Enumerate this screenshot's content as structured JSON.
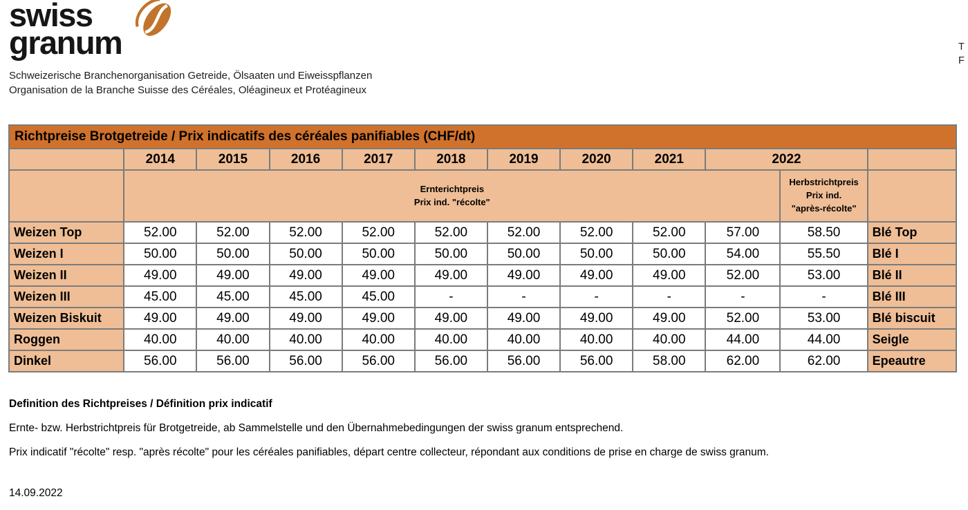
{
  "logo": {
    "word1": "swiss",
    "word2": "granum",
    "icon": "grain-seed-icon",
    "subtitle_de": "Schweizerische Branchenorganisation Getreide, Ölsaaten und Eiweisspflanzen",
    "subtitle_fr": "Organisation de la Branche Suisse des Céréales, Oléagineux et Protéagineux"
  },
  "contact_cut": {
    "line1": "T",
    "line2": "F"
  },
  "table": {
    "title": "Richtpreise Brotgetreide / Prix indicatifs des céréales panifiables (CHF/dt)",
    "years": [
      "2014",
      "2015",
      "2016",
      "2017",
      "2018",
      "2019",
      "2020",
      "2021"
    ],
    "year_2022": "2022",
    "subheader_main_l1": "Ernterichtpreis",
    "subheader_main_l2": "Prix ind. \"récolte\"",
    "subheader_2022b_l1": "Herbstrichtpreis",
    "subheader_2022b_l2": "Prix ind.",
    "subheader_2022b_l3": "\"après-récolte\"",
    "rows": [
      {
        "label_de": "Weizen Top",
        "values": [
          "52.00",
          "52.00",
          "52.00",
          "52.00",
          "52.00",
          "52.00",
          "52.00",
          "52.00",
          "57.00",
          "58.50"
        ],
        "label_fr": "Blé Top"
      },
      {
        "label_de": "Weizen I",
        "values": [
          "50.00",
          "50.00",
          "50.00",
          "50.00",
          "50.00",
          "50.00",
          "50.00",
          "50.00",
          "54.00",
          "55.50"
        ],
        "label_fr": "Blé I"
      },
      {
        "label_de": "Weizen II",
        "values": [
          "49.00",
          "49.00",
          "49.00",
          "49.00",
          "49.00",
          "49.00",
          "49.00",
          "49.00",
          "52.00",
          "53.00"
        ],
        "label_fr": "Blé II"
      },
      {
        "label_de": "Weizen III",
        "values": [
          "45.00",
          "45.00",
          "45.00",
          "45.00",
          "-",
          "-",
          "-",
          "-",
          "-",
          "-"
        ],
        "label_fr": "Blé III"
      },
      {
        "label_de": "Weizen Biskuit",
        "values": [
          "49.00",
          "49.00",
          "49.00",
          "49.00",
          "49.00",
          "49.00",
          "49.00",
          "49.00",
          "52.00",
          "53.00"
        ],
        "label_fr": "Blé biscuit"
      },
      {
        "label_de": "Roggen",
        "values": [
          "40.00",
          "40.00",
          "40.00",
          "40.00",
          "40.00",
          "40.00",
          "40.00",
          "40.00",
          "44.00",
          "44.00"
        ],
        "label_fr": "Seigle"
      },
      {
        "label_de": "Dinkel",
        "values": [
          "56.00",
          "56.00",
          "56.00",
          "56.00",
          "56.00",
          "56.00",
          "56.00",
          "58.00",
          "62.00",
          "62.00"
        ],
        "label_fr": "Epeautre"
      }
    ]
  },
  "definition": {
    "heading": "Definition des Richtpreises / Définition prix indicatif",
    "line_de": "Ernte- bzw. Herbstrichtpreis für Brotgetreide, ab Sammelstelle und den Übernahmebedingungen der swiss granum entsprechend.",
    "line_fr": "Prix indicatif \"récolte\" resp. \"après récolte\" pour les céréales panifiables, départ centre collecteur, répondant aux conditions de prise en charge de swiss granum."
  },
  "date": "14.09.2022",
  "colors": {
    "header_orange": "#D0722C",
    "cell_salmon": "#EFBE96",
    "border_gray": "#7B7B7B",
    "logo_orange": "#C0742D"
  }
}
